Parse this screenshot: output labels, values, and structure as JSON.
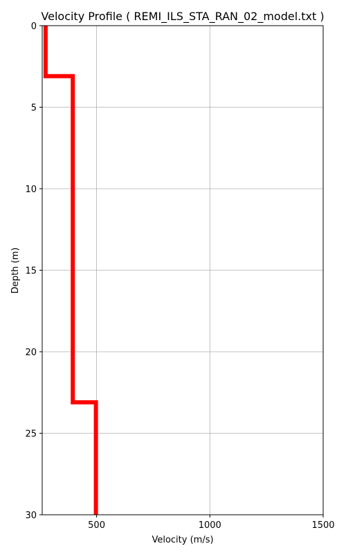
{
  "chart_data": {
    "type": "line",
    "title": "Velocity Profile ( REMI_ILS_STA_RAN_02_model.txt )",
    "xlabel": "Velocity (m/s)",
    "ylabel": "Depth (m)",
    "xlim": [
      260,
      1500
    ],
    "ylim": [
      0,
      30
    ],
    "y_inverted": true,
    "x_ticks": [
      500,
      1000,
      1500
    ],
    "y_ticks": [
      0,
      5,
      10,
      15,
      20,
      25,
      30
    ],
    "grid": true,
    "legend": "none",
    "series": [
      {
        "color": "#ff0000",
        "points": [
          {
            "velocity": 275,
            "depth": 0
          },
          {
            "velocity": 275,
            "depth": 3.1
          },
          {
            "velocity": 395,
            "depth": 3.1
          },
          {
            "velocity": 395,
            "depth": 23.1
          },
          {
            "velocity": 497,
            "depth": 23.1
          },
          {
            "velocity": 497,
            "depth": 30
          }
        ]
      }
    ]
  }
}
